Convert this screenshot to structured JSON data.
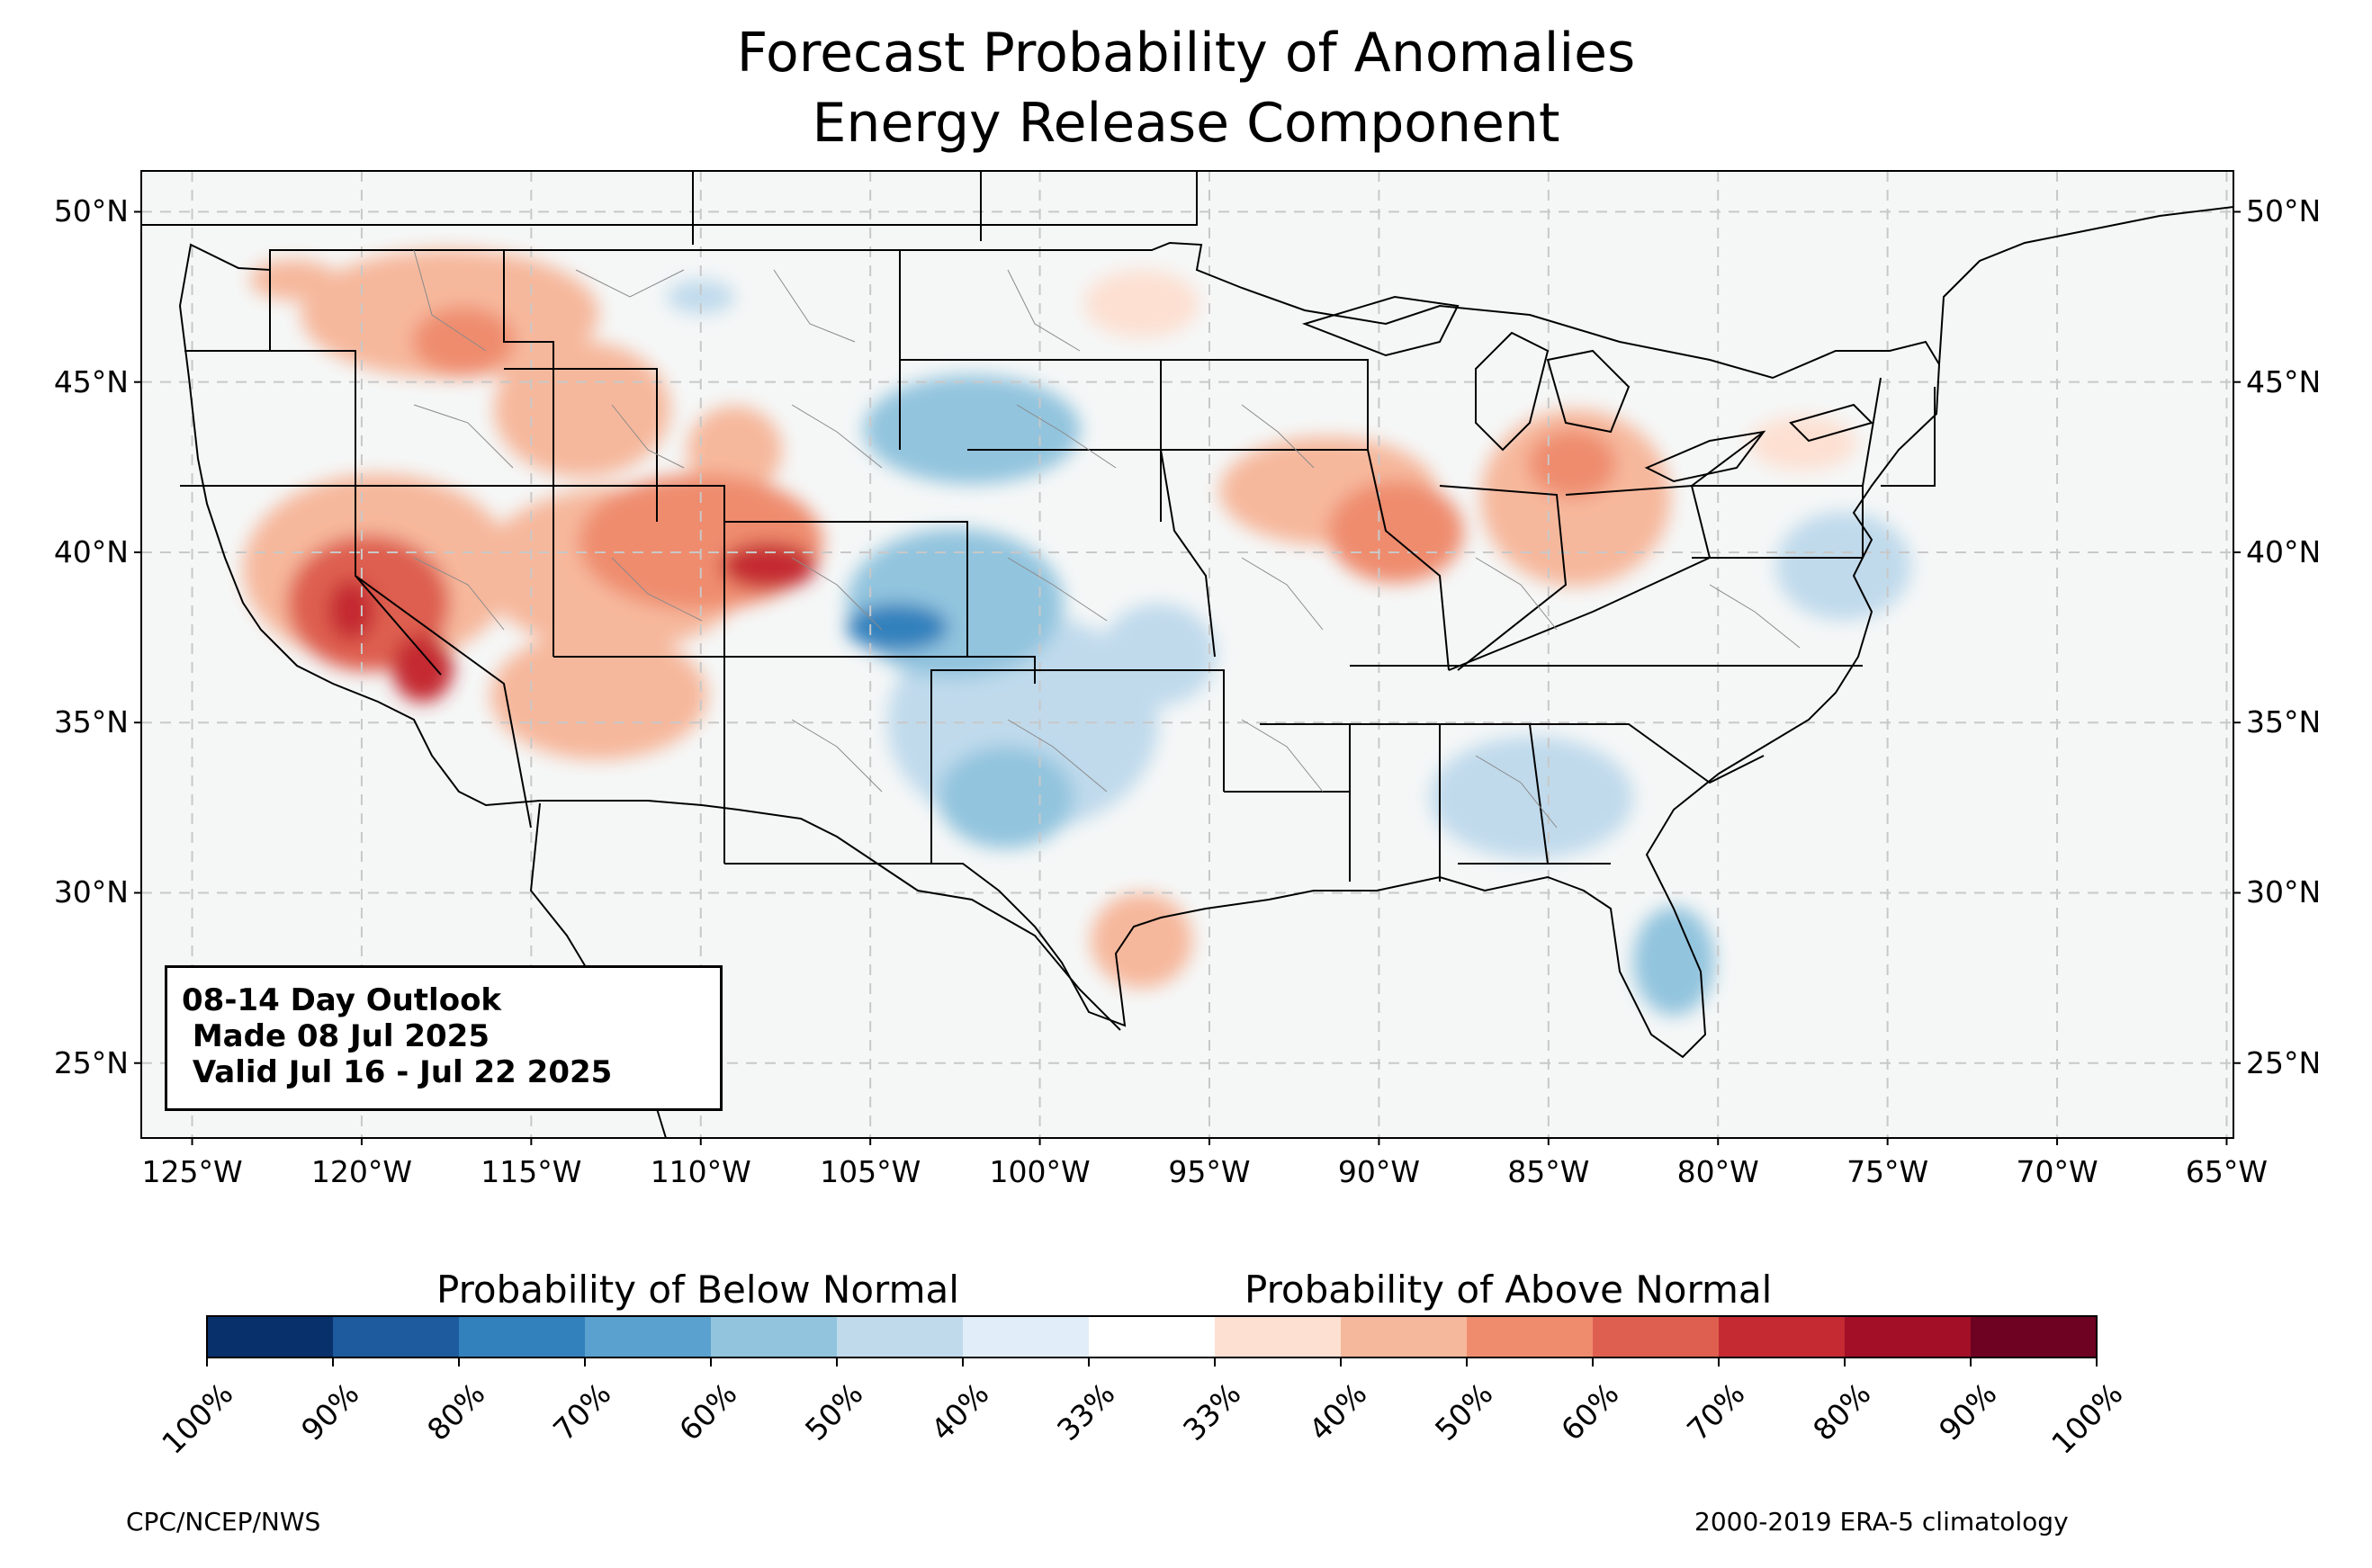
{
  "title": {
    "line1": "Forecast Probability of Anomalies",
    "line2": "Energy Release Component"
  },
  "map": {
    "projection": "plate-carree",
    "lon_range": [
      -126.5,
      -64.8
    ],
    "lat_range": [
      22.8,
      51.2
    ],
    "grid": "dashed",
    "lat_ticks": [
      {
        "value": 50,
        "label": "50°N"
      },
      {
        "value": 45,
        "label": "45°N"
      },
      {
        "value": 40,
        "label": "40°N"
      },
      {
        "value": 35,
        "label": "35°N"
      },
      {
        "value": 30,
        "label": "30°N"
      },
      {
        "value": 25,
        "label": "25°N"
      }
    ],
    "lon_ticks": [
      {
        "value": -125,
        "label": "125°W"
      },
      {
        "value": -120,
        "label": "120°W"
      },
      {
        "value": -115,
        "label": "115°W"
      },
      {
        "value": -110,
        "label": "110°W"
      },
      {
        "value": -105,
        "label": "105°W"
      },
      {
        "value": -100,
        "label": "100°W"
      },
      {
        "value": -95,
        "label": "95°W"
      },
      {
        "value": -90,
        "label": "90°W"
      },
      {
        "value": -85,
        "label": "85°W"
      },
      {
        "value": -80,
        "label": "80°W"
      },
      {
        "value": -75,
        "label": "75°W"
      },
      {
        "value": -70,
        "label": "70°W"
      },
      {
        "value": -65,
        "label": "65°W"
      }
    ],
    "ocean_color": "#f5f7f7",
    "land_color": "#f5f7f7",
    "above_regions": [
      {
        "lon": -119.5,
        "lat": 39.5,
        "rlon": 4.0,
        "rlat": 2.8,
        "level": 2
      },
      {
        "lon": -119.8,
        "lat": 38.5,
        "rlon": 2.4,
        "rlat": 2.0,
        "level": 4
      },
      {
        "lon": -118.2,
        "lat": 36.6,
        "rlon": 0.9,
        "rlat": 1.0,
        "level": 5
      },
      {
        "lon": -120.3,
        "lat": 38.3,
        "rlon": 0.7,
        "rlat": 0.9,
        "level": 5
      },
      {
        "lon": -117.4,
        "lat": 47.0,
        "rlon": 4.4,
        "rlat": 1.9,
        "level": 2
      },
      {
        "lon": -117.0,
        "lat": 46.2,
        "rlon": 1.5,
        "rlat": 1.0,
        "level": 3
      },
      {
        "lon": -122.0,
        "lat": 48.0,
        "rlon": 1.3,
        "rlat": 0.6,
        "level": 2
      },
      {
        "lon": -113.5,
        "lat": 44.2,
        "rlon": 2.6,
        "rlat": 2.0,
        "level": 2
      },
      {
        "lon": -112.5,
        "lat": 39.5,
        "rlon": 4.0,
        "rlat": 2.4,
        "level": 2
      },
      {
        "lon": -110.0,
        "lat": 40.3,
        "rlon": 3.6,
        "rlat": 2.0,
        "level": 3
      },
      {
        "lon": -108.0,
        "lat": 39.6,
        "rlon": 1.4,
        "rlat": 0.7,
        "level": 5
      },
      {
        "lon": -113.0,
        "lat": 35.8,
        "rlon": 3.2,
        "rlat": 1.9,
        "level": 2
      },
      {
        "lon": -109.0,
        "lat": 43.0,
        "rlon": 1.4,
        "rlat": 1.3,
        "level": 2
      },
      {
        "lon": -91.5,
        "lat": 41.8,
        "rlon": 3.2,
        "rlat": 1.6,
        "level": 2
      },
      {
        "lon": -89.5,
        "lat": 40.6,
        "rlon": 2.0,
        "rlat": 1.5,
        "level": 3
      },
      {
        "lon": -84.2,
        "lat": 41.6,
        "rlon": 2.8,
        "rlat": 2.6,
        "level": 2
      },
      {
        "lon": -84.3,
        "lat": 42.6,
        "rlon": 1.3,
        "rlat": 1.0,
        "level": 3
      },
      {
        "lon": -97.0,
        "lat": 28.6,
        "rlon": 1.5,
        "rlat": 1.4,
        "level": 2
      },
      {
        "lon": -97.0,
        "lat": 47.3,
        "rlon": 1.7,
        "rlat": 1.0,
        "level": 1
      },
      {
        "lon": -77.5,
        "lat": 43.2,
        "rlon": 1.6,
        "rlat": 0.8,
        "level": 1
      }
    ],
    "below_regions": [
      {
        "lon": -102.5,
        "lat": 38.5,
        "rlon": 3.2,
        "rlat": 2.2,
        "level": 2
      },
      {
        "lon": -104.2,
        "lat": 37.8,
        "rlon": 1.5,
        "rlat": 0.7,
        "level": 4
      },
      {
        "lon": -102.0,
        "lat": 43.6,
        "rlon": 3.2,
        "rlat": 1.6,
        "level": 2
      },
      {
        "lon": -100.5,
        "lat": 35.0,
        "rlon": 4.0,
        "rlat": 3.2,
        "level": 1
      },
      {
        "lon": -101.0,
        "lat": 32.8,
        "rlon": 2.0,
        "rlat": 1.5,
        "level": 2
      },
      {
        "lon": -96.5,
        "lat": 37.0,
        "rlon": 1.7,
        "rlat": 1.5,
        "level": 1
      },
      {
        "lon": -85.5,
        "lat": 32.8,
        "rlon": 3.0,
        "rlat": 1.8,
        "level": 1
      },
      {
        "lon": -81.3,
        "lat": 28.0,
        "rlon": 1.2,
        "rlat": 1.6,
        "level": 2
      },
      {
        "lon": -76.3,
        "lat": 39.6,
        "rlon": 2.0,
        "rlat": 1.6,
        "level": 1
      },
      {
        "lon": -110.0,
        "lat": 47.5,
        "rlon": 1.0,
        "rlat": 0.5,
        "level": 1
      }
    ]
  },
  "info_box": {
    "line1": "08-14 Day Outlook",
    "line2": " Made 08 Jul 2025",
    "line3": " Valid Jul 16 - Jul 22 2025"
  },
  "colorbar": {
    "below_label": "Probability of Below Normal",
    "above_label": "Probability of Above Normal",
    "colors": [
      "#08306b",
      "#1d5a9e",
      "#3281bd",
      "#5aa1cf",
      "#92c4de",
      "#c0daec",
      "#e1edf8",
      "#ffffff",
      "#fde0d2",
      "#f6b89c",
      "#ef8c6e",
      "#de5f4f",
      "#c52a32",
      "#a20f27",
      "#6e0222"
    ],
    "ticks": [
      "100%",
      "90%",
      "80%",
      "70%",
      "60%",
      "50%",
      "40%",
      "33%",
      "33%",
      "40%",
      "50%",
      "60%",
      "70%",
      "80%",
      "90%",
      "100%"
    ]
  },
  "credits": {
    "left": "CPC/NCEP/NWS",
    "right": "2000-2019 ERA-5 climatology"
  }
}
